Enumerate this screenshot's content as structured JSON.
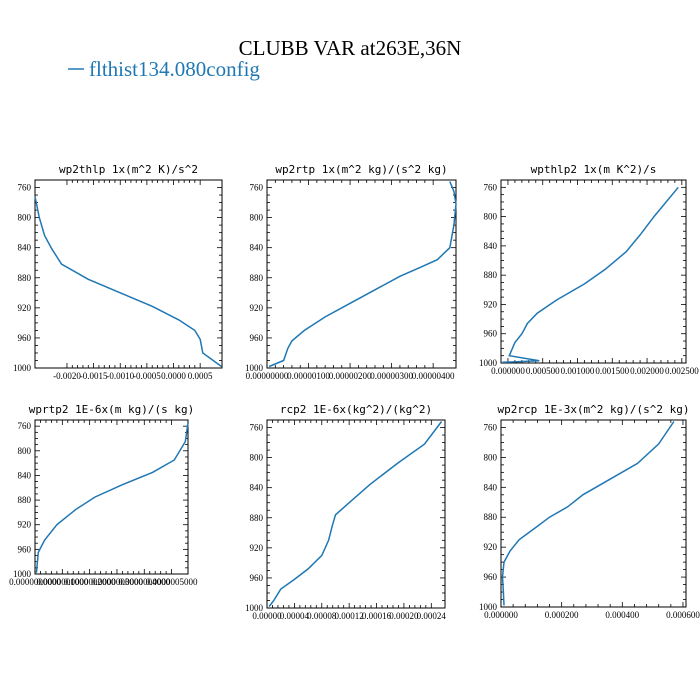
{
  "figure": {
    "title": "CLUBB VAR at263E,36N",
    "legend_label": "flthist134.080config",
    "series_color": "#1f77b4"
  },
  "chart_data": [
    {
      "type": "line",
      "title": "wp2thlp  1x(m^2 K)/s^2",
      "xlim": [
        -0.0026,
        0.00091
      ],
      "ylim": [
        1000,
        750
      ],
      "xticks": [
        -0.002,
        -0.0015,
        -0.001,
        -0.0005,
        0.0,
        0.0005
      ],
      "xtick_labels": [
        "-0.0020",
        "-0.0015",
        "-0.0010",
        "-0.0005",
        "0.0000",
        "0.0005"
      ],
      "yticks": [
        760,
        800,
        840,
        880,
        920,
        960,
        1000
      ],
      "ytick_labels": [
        "760",
        "800",
        "840",
        "880",
        "920",
        "960",
        "1000"
      ],
      "series": [
        {
          "x": [
            -0.0026,
            -0.00252,
            -0.00242,
            -0.00228,
            -0.0021,
            -0.0016,
            -0.001,
            -0.0004,
            0.0001,
            0.0004,
            0.0005,
            0.00055,
            0.0009
          ],
          "y": [
            772,
            800,
            824,
            842,
            862,
            882,
            900,
            918,
            936,
            950,
            962,
            980,
            998
          ]
        }
      ]
    },
    {
      "type": "line",
      "title": "wp2rtp  1x(m^2 kg)/(s^2 kg)",
      "xlim": [
        0.0,
        4.55e-06
      ],
      "ylim": [
        1000,
        750
      ],
      "xticks": [
        0.0,
        1e-06,
        2e-06,
        3e-06,
        4e-06
      ],
      "xtick_labels": [
        "0.00000000",
        "0.00000100",
        "0.00000200",
        "0.00000300",
        "0.00000400"
      ],
      "yticks": [
        760,
        800,
        840,
        880,
        920,
        960,
        1000
      ],
      "ytick_labels": [
        "760",
        "800",
        "840",
        "880",
        "920",
        "960",
        "1000"
      ],
      "series": [
        {
          "x": [
            5e-08,
            4e-07,
            4.5e-07,
            5e-07,
            6e-07,
            9e-07,
            1.4e-06,
            2e-06,
            2.6e-06,
            3.2e-06,
            3.7e-06,
            4.1e-06,
            4.4e-06,
            4.5e-06,
            4.55e-06,
            4.5e-06,
            4.4e-06
          ],
          "y": [
            998,
            990,
            982,
            974,
            964,
            950,
            932,
            914,
            896,
            878,
            866,
            856,
            840,
            810,
            782,
            765,
            752
          ]
        }
      ]
    },
    {
      "type": "line",
      "title": "wpthlp2  1x(m K^2)/s",
      "xlim": [
        -0.0001,
        0.00256
      ],
      "ylim": [
        1000,
        750
      ],
      "xticks": [
        0.0,
        0.0005,
        0.001,
        0.0015,
        0.002,
        0.0025
      ],
      "xtick_labels": [
        "0.000000",
        "0.000500",
        "0.001000",
        "0.001500",
        "0.002000",
        "0.002500"
      ],
      "yticks": [
        760,
        800,
        840,
        880,
        920,
        960,
        1000
      ],
      "ytick_labels": [
        "760",
        "800",
        "840",
        "880",
        "920",
        "960",
        "1000"
      ],
      "series": [
        {
          "x": [
            -8e-05,
            0.00045,
            2e-05,
            0.0001,
            0.0002,
            0.00028,
            0.00042,
            0.0007,
            0.0011,
            0.0014,
            0.0017,
            0.0019,
            0.0021,
            0.00245
          ],
          "y": [
            999,
            997,
            990,
            972,
            960,
            946,
            932,
            914,
            892,
            872,
            848,
            825,
            800,
            760
          ]
        }
      ]
    },
    {
      "type": "line",
      "title": "wprtp2  1E-6x(m kg)/(s kg)",
      "xlim": [
        0.0,
        5.6e-07
      ],
      "ylim": [
        1000,
        750
      ],
      "xticks": [
        0.0,
        1e-07,
        2e-07,
        3e-07,
        4e-07,
        5e-07
      ],
      "xtick_labels": [
        "0.0000000000",
        "0.0000001000",
        "0.0000002000",
        "0.0000003000",
        "0.0000004000",
        "0.0000005000"
      ],
      "yticks": [
        760,
        800,
        840,
        880,
        920,
        960,
        1000
      ],
      "ytick_labels": [
        "760",
        "800",
        "840",
        "880",
        "920",
        "960",
        "1000"
      ],
      "series": [
        {
          "x": [
            5e-09,
            1.2e-08,
            3.5e-08,
            8e-08,
            1.5e-07,
            2.2e-07,
            3.2e-07,
            4.3e-07,
            5.1e-07,
            5.5e-07,
            5.6e-07
          ],
          "y": [
            998,
            965,
            945,
            920,
            895,
            875,
            855,
            835,
            815,
            785,
            755
          ]
        }
      ]
    },
    {
      "type": "line",
      "title": "rcp2  1E-6x(kg^2)/(kg^2)",
      "xlim": [
        0.0,
        0.00026
      ],
      "ylim": [
        1000,
        750
      ],
      "xticks": [
        0.0,
        4e-05,
        8e-05,
        0.00012,
        0.00016,
        0.0002,
        0.00024
      ],
      "xtick_labels": [
        "0.00000",
        "0.00004",
        "0.00008",
        "0.00012",
        "0.00016",
        "0.00020",
        "0.00024"
      ],
      "yticks": [
        760,
        800,
        840,
        880,
        920,
        960,
        1000
      ],
      "ytick_labels": [
        "760",
        "800",
        "840",
        "880",
        "920",
        "960",
        "1000"
      ],
      "series": [
        {
          "x": [
            3e-06,
            1e-05,
            2e-05,
            4e-05,
            6e-05,
            8e-05,
            9e-05,
            9.5e-05,
            0.0001,
            0.00012,
            0.00015,
            0.00019,
            0.00023,
            0.000255
          ],
          "y": [
            998,
            990,
            975,
            962,
            948,
            930,
            910,
            892,
            876,
            860,
            836,
            808,
            782,
            752
          ]
        }
      ]
    },
    {
      "type": "line",
      "title": "wp2rcp  1E-3x(m^2 kg)/(s^2 kg)",
      "xlim": [
        0.0,
        0.00061
      ],
      "ylim": [
        1000,
        750
      ],
      "xticks": [
        0.0,
        0.0002,
        0.0004,
        0.0006
      ],
      "xtick_labels": [
        "0.000000",
        "0.000200",
        "0.000400",
        "0.000600"
      ],
      "yticks": [
        760,
        800,
        840,
        880,
        920,
        960,
        1000
      ],
      "ytick_labels": [
        "760",
        "800",
        "840",
        "880",
        "920",
        "960",
        "1000"
      ],
      "series": [
        {
          "x": [
            1e-05,
            8e-06,
            5e-06,
            1e-05,
            3e-05,
            6e-05,
            0.00011,
            0.00016,
            0.00022,
            0.00027,
            0.00033,
            0.00045,
            0.00052,
            0.00057
          ],
          "y": [
            998,
            980,
            960,
            940,
            925,
            910,
            895,
            880,
            866,
            850,
            836,
            808,
            782,
            752
          ]
        }
      ]
    }
  ]
}
